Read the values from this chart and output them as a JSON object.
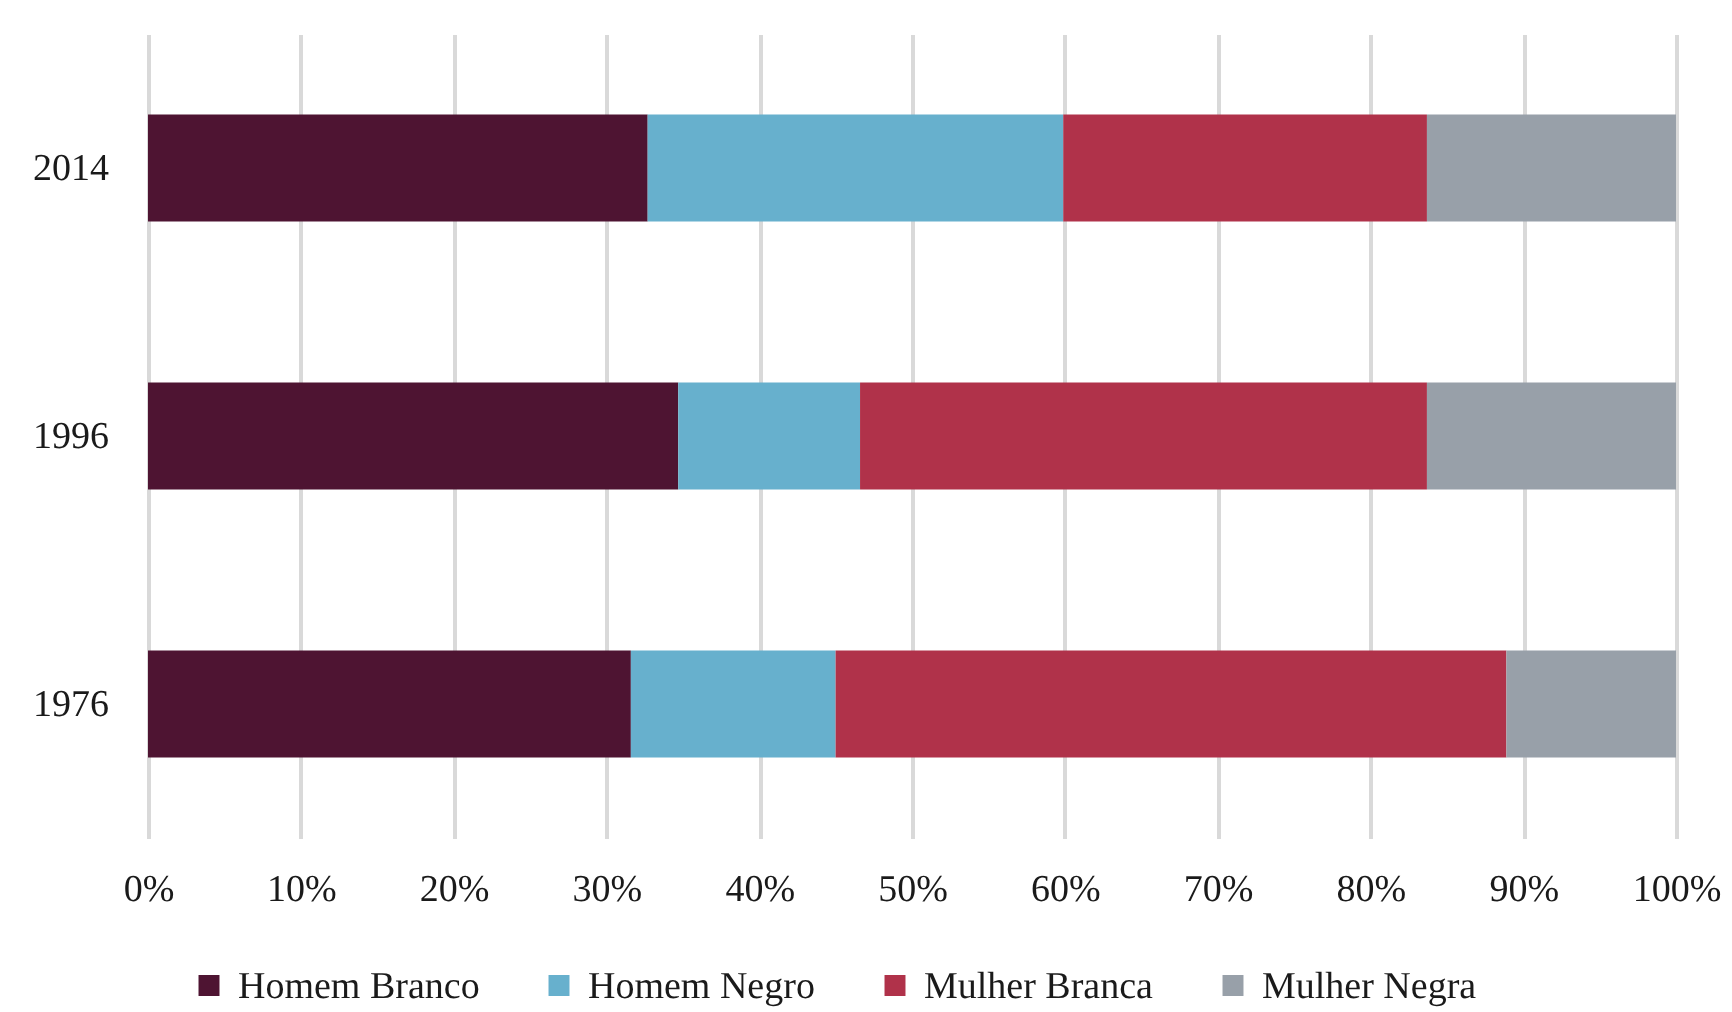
{
  "chart_data": {
    "type": "bar",
    "orientation": "horizontal",
    "stacked": true,
    "categories": [
      "2014",
      "1996",
      "1976"
    ],
    "series": [
      {
        "name": "Homem Branco",
        "color": "#4e1432",
        "values": [
          32.7,
          34.7,
          31.6
        ]
      },
      {
        "name": "Homem Negro",
        "color": "#67b0cd",
        "values": [
          27.2,
          11.9,
          13.4
        ]
      },
      {
        "name": "Mulher Branca",
        "color": "#b0324a",
        "values": [
          23.8,
          37.1,
          43.9
        ]
      },
      {
        "name": "Mulher Negra",
        "color": "#98a0a9",
        "values": [
          16.3,
          16.3,
          11.1
        ]
      }
    ],
    "xlim": [
      0,
      100
    ],
    "xticks": [
      {
        "value": 0,
        "label": "0%"
      },
      {
        "value": 10,
        "label": "10%"
      },
      {
        "value": 20,
        "label": "20%"
      },
      {
        "value": 30,
        "label": "30%"
      },
      {
        "value": 40,
        "label": "40%"
      },
      {
        "value": 50,
        "label": "50%"
      },
      {
        "value": 60,
        "label": "60%"
      },
      {
        "value": 70,
        "label": "70%"
      },
      {
        "value": 80,
        "label": "80%"
      },
      {
        "value": 90,
        "label": "90%"
      },
      {
        "value": 100,
        "label": "100%"
      }
    ],
    "grid": "x",
    "legend": "bottom"
  }
}
